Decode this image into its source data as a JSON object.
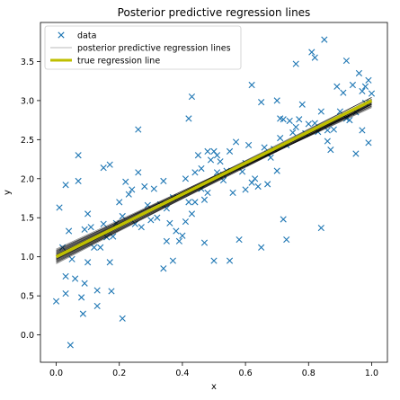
{
  "chart_data": {
    "type": "scatter",
    "title": "Posterior predictive regression lines",
    "xlabel": "x",
    "ylabel": "y",
    "xlim": [
      -0.05,
      1.05
    ],
    "ylim": [
      -0.35,
      4.0
    ],
    "xticks": [
      {
        "value": 0.0,
        "label": "0.0"
      },
      {
        "value": 0.2,
        "label": "0.2"
      },
      {
        "value": 0.4,
        "label": "0.4"
      },
      {
        "value": 0.6,
        "label": "0.6"
      },
      {
        "value": 0.8,
        "label": "0.8"
      },
      {
        "value": 1.0,
        "label": "1.0"
      }
    ],
    "yticks": [
      {
        "value": 0.0,
        "label": "0.0"
      },
      {
        "value": 0.5,
        "label": "0.5"
      },
      {
        "value": 1.0,
        "label": "1.0"
      },
      {
        "value": 1.5,
        "label": "1.5"
      },
      {
        "value": 2.0,
        "label": "2.0"
      },
      {
        "value": 2.5,
        "label": "2.5"
      },
      {
        "value": 3.0,
        "label": "3.0"
      },
      {
        "value": 3.5,
        "label": "3.5"
      }
    ],
    "grid": false,
    "legend_position": "upper-left",
    "legend": [
      {
        "label": "data",
        "kind": "marker",
        "color": "#1f77b4"
      },
      {
        "label": "posterior predictive regression lines",
        "kind": "line",
        "color": "#c8c8c8"
      },
      {
        "label": "true regression line",
        "kind": "line",
        "color": "#bfbf00"
      }
    ],
    "series": [
      {
        "name": "data",
        "kind": "scatter",
        "marker": "x",
        "color": "#1f77b4",
        "points": [
          [
            0.0,
            0.43
          ],
          [
            0.01,
            1.63
          ],
          [
            0.02,
            1.12
          ],
          [
            0.03,
            0.53
          ],
          [
            0.03,
            1.92
          ],
          [
            0.03,
            0.75
          ],
          [
            0.04,
            1.33
          ],
          [
            0.045,
            -0.13
          ],
          [
            0.05,
            0.97
          ],
          [
            0.06,
            0.72
          ],
          [
            0.07,
            2.3
          ],
          [
            0.07,
            1.97
          ],
          [
            0.08,
            0.48
          ],
          [
            0.085,
            0.27
          ],
          [
            0.09,
            1.35
          ],
          [
            0.09,
            0.66
          ],
          [
            0.1,
            1.55
          ],
          [
            0.1,
            0.93
          ],
          [
            0.11,
            1.38
          ],
          [
            0.12,
            1.12
          ],
          [
            0.13,
            0.57
          ],
          [
            0.13,
            0.37
          ],
          [
            0.14,
            1.12
          ],
          [
            0.15,
            1.42
          ],
          [
            0.15,
            2.14
          ],
          [
            0.16,
            1.25
          ],
          [
            0.17,
            2.18
          ],
          [
            0.17,
            0.93
          ],
          [
            0.175,
            0.56
          ],
          [
            0.18,
            1.26
          ],
          [
            0.19,
            1.43
          ],
          [
            0.2,
            1.7
          ],
          [
            0.21,
            1.52
          ],
          [
            0.21,
            0.21
          ],
          [
            0.22,
            1.96
          ],
          [
            0.23,
            1.8
          ],
          [
            0.24,
            1.86
          ],
          [
            0.25,
            1.42
          ],
          [
            0.26,
            2.08
          ],
          [
            0.26,
            2.63
          ],
          [
            0.27,
            1.38
          ],
          [
            0.28,
            1.9
          ],
          [
            0.29,
            1.66
          ],
          [
            0.3,
            1.47
          ],
          [
            0.31,
            1.87
          ],
          [
            0.32,
            1.5
          ],
          [
            0.33,
            1.67
          ],
          [
            0.34,
            1.97
          ],
          [
            0.34,
            0.85
          ],
          [
            0.35,
            1.2
          ],
          [
            0.35,
            1.62
          ],
          [
            0.36,
            1.43
          ],
          [
            0.37,
            0.95
          ],
          [
            0.37,
            1.76
          ],
          [
            0.38,
            1.33
          ],
          [
            0.39,
            1.2
          ],
          [
            0.4,
            1.27
          ],
          [
            0.41,
            2.0
          ],
          [
            0.41,
            1.45
          ],
          [
            0.42,
            2.77
          ],
          [
            0.42,
            1.7
          ],
          [
            0.43,
            3.05
          ],
          [
            0.43,
            1.55
          ],
          [
            0.44,
            2.08
          ],
          [
            0.44,
            1.7
          ],
          [
            0.45,
            2.3
          ],
          [
            0.46,
            2.13
          ],
          [
            0.46,
            1.87
          ],
          [
            0.47,
            1.73
          ],
          [
            0.47,
            1.18
          ],
          [
            0.48,
            2.35
          ],
          [
            0.48,
            1.82
          ],
          [
            0.49,
            2.24
          ],
          [
            0.5,
            2.35
          ],
          [
            0.5,
            0.95
          ],
          [
            0.51,
            2.3
          ],
          [
            0.51,
            2.08
          ],
          [
            0.52,
            2.22
          ],
          [
            0.53,
            2.05
          ],
          [
            0.53,
            1.98
          ],
          [
            0.54,
            2.1
          ],
          [
            0.55,
            0.95
          ],
          [
            0.55,
            2.35
          ],
          [
            0.56,
            1.82
          ],
          [
            0.57,
            2.47
          ],
          [
            0.58,
            1.22
          ],
          [
            0.59,
            2.09
          ],
          [
            0.6,
            2.2
          ],
          [
            0.6,
            1.86
          ],
          [
            0.61,
            2.43
          ],
          [
            0.62,
            3.2
          ],
          [
            0.62,
            1.95
          ],
          [
            0.63,
            2.0
          ],
          [
            0.64,
            1.9
          ],
          [
            0.65,
            2.98
          ],
          [
            0.65,
            1.12
          ],
          [
            0.66,
            2.4
          ],
          [
            0.67,
            2.32
          ],
          [
            0.67,
            1.93
          ],
          [
            0.68,
            2.27
          ],
          [
            0.69,
            2.38
          ],
          [
            0.7,
            3.0
          ],
          [
            0.7,
            2.1
          ],
          [
            0.71,
            2.77
          ],
          [
            0.71,
            2.52
          ],
          [
            0.72,
            2.76
          ],
          [
            0.72,
            1.48
          ],
          [
            0.73,
            1.22
          ],
          [
            0.73,
            2.43
          ],
          [
            0.74,
            2.74
          ],
          [
            0.75,
            2.59
          ],
          [
            0.76,
            3.47
          ],
          [
            0.76,
            2.66
          ],
          [
            0.77,
            2.76
          ],
          [
            0.78,
            2.95
          ],
          [
            0.79,
            2.58
          ],
          [
            0.8,
            2.7
          ],
          [
            0.81,
            3.62
          ],
          [
            0.82,
            2.71
          ],
          [
            0.82,
            3.55
          ],
          [
            0.83,
            2.6
          ],
          [
            0.84,
            1.37
          ],
          [
            0.84,
            2.86
          ],
          [
            0.85,
            3.78
          ],
          [
            0.86,
            2.62
          ],
          [
            0.86,
            2.48
          ],
          [
            0.87,
            2.37
          ],
          [
            0.88,
            2.63
          ],
          [
            0.89,
            3.18
          ],
          [
            0.9,
            2.86
          ],
          [
            0.91,
            3.1
          ],
          [
            0.92,
            3.51
          ],
          [
            0.92,
            2.77
          ],
          [
            0.93,
            2.75
          ],
          [
            0.94,
            3.2
          ],
          [
            0.95,
            2.85
          ],
          [
            0.95,
            2.32
          ],
          [
            0.96,
            3.35
          ],
          [
            0.97,
            3.12
          ],
          [
            0.97,
            2.62
          ],
          [
            0.98,
            2.97
          ],
          [
            0.98,
            3.18
          ],
          [
            0.99,
            3.26
          ],
          [
            0.99,
            2.46
          ],
          [
            1.0,
            3.09
          ]
        ]
      },
      {
        "name": "posterior predictive regression lines",
        "kind": "lines",
        "color": "#000000",
        "lines": [
          [
            1.1,
            1.86
          ],
          [
            0.94,
            2.07
          ],
          [
            1.02,
            1.92
          ],
          [
            0.99,
            2.05
          ],
          [
            1.05,
            1.88
          ],
          [
            0.97,
            2.02
          ],
          [
            1.08,
            1.9
          ],
          [
            0.92,
            2.1
          ],
          [
            1.0,
            1.97
          ],
          [
            1.03,
            1.95
          ],
          [
            0.96,
            2.0
          ],
          [
            1.06,
            1.85
          ],
          [
            0.98,
            1.99
          ],
          [
            1.01,
            2.01
          ],
          [
            0.93,
            2.03
          ],
          [
            1.07,
            1.93
          ],
          [
            0.95,
            2.06
          ],
          [
            1.04,
            1.91
          ],
          [
            1.09,
            1.84
          ],
          [
            0.91,
            2.09
          ],
          [
            0.99,
            1.96
          ],
          [
            1.02,
            1.98
          ],
          [
            0.97,
            2.04
          ],
          [
            1.05,
            1.94
          ],
          [
            1.0,
            1.93
          ],
          [
            0.96,
            2.08
          ],
          [
            1.03,
            1.89
          ],
          [
            0.94,
            2.01
          ],
          [
            1.08,
            1.87
          ],
          [
            0.98,
            2.03
          ],
          [
            1.01,
            1.96
          ],
          [
            1.06,
            1.92
          ],
          [
            0.93,
            2.06
          ],
          [
            1.04,
            1.97
          ],
          [
            0.99,
            1.99
          ],
          [
            1.02,
            2.02
          ],
          [
            0.95,
            2.0
          ],
          [
            1.07,
            1.88
          ],
          [
            0.97,
            1.98
          ],
          [
            1.0,
            2.0
          ]
        ]
      },
      {
        "name": "true regression line",
        "kind": "line",
        "color": "#bfbf00",
        "intercept": 1.0,
        "slope": 2.0
      }
    ]
  }
}
